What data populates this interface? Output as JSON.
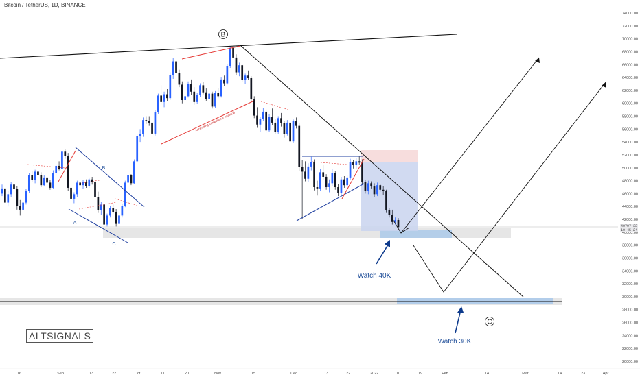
{
  "header": {
    "symbol": "Bitcoin / TetherUS, 1D, BINANCE"
  },
  "logo": {
    "text": "ALTSIGNALS"
  },
  "price_box": {
    "price": "40797.33",
    "time": "10:45:24"
  },
  "annotations": {
    "wave_B_top": "B",
    "wave_C_future": "C",
    "small_A": "A",
    "small_B": "B",
    "small_C": "C",
    "watch_40k": "Watch 40K",
    "watch_30k": "Watch 30K",
    "rotated_note": "Ascending correction = reversal"
  },
  "colors": {
    "bull": "#2962ff",
    "bear": "#131722",
    "trend_red": "#e53935",
    "trend_blue": "#2040a0",
    "arrow_blue": "#0d3a8c",
    "zone_blue": "#a8c8ea",
    "zone_grey": "#e6e6e6",
    "loss_zone": "#f6d7d7",
    "profit_zone": "#c9d3ef"
  },
  "chart_data": {
    "type": "candlestick",
    "symbol": "BTCUSDT",
    "timeframe": "1D",
    "ylim": [
      20000,
      74000
    ],
    "y_ticks": [
      "74000.00",
      "72000.00",
      "70000.00",
      "68000.00",
      "66000.00",
      "64000.00",
      "62000.00",
      "60000.00",
      "58000.00",
      "56000.00",
      "54000.00",
      "52000.00",
      "50000.00",
      "48000.00",
      "46000.00",
      "44000.00",
      "42000.00",
      "40000.00",
      "38000.00",
      "36000.00",
      "34000.00",
      "32000.00",
      "30000.00",
      "28000.00",
      "26000.00",
      "24000.00",
      "22000.00",
      "20000.00"
    ],
    "x_ticks": [
      "16",
      "Sep",
      "13",
      "22",
      "Oct",
      "11",
      "20",
      "Nov",
      "15",
      "Dec",
      "13",
      "22",
      "2022",
      "10",
      "19",
      "Feb",
      "14",
      "Mar",
      "14",
      "23",
      "Apr"
    ],
    "last_price": 40797.33,
    "support_levels": [
      40000,
      30000
    ],
    "candles": [
      [
        46000,
        47400,
        45600,
        46800
      ],
      [
        46800,
        47200,
        44200,
        44600
      ],
      [
        44600,
        46400,
        44000,
        45900
      ],
      [
        45900,
        47800,
        45500,
        47400
      ],
      [
        47400,
        48000,
        46400,
        46700
      ],
      [
        46700,
        47100,
        43500,
        44100
      ],
      [
        44100,
        45000,
        42600,
        43500
      ],
      [
        43500,
        44900,
        43100,
        44600
      ],
      [
        44600,
        46700,
        44300,
        46400
      ],
      [
        46400,
        49200,
        46100,
        48900
      ],
      [
        48900,
        49500,
        47800,
        48100
      ],
      [
        48100,
        49700,
        47600,
        49400
      ],
      [
        49400,
        50300,
        48600,
        48900
      ],
      [
        48900,
        49300,
        47000,
        47300
      ],
      [
        47300,
        48800,
        47100,
        48500
      ],
      [
        48500,
        49400,
        47500,
        47700
      ],
      [
        47700,
        48100,
        46600,
        46900
      ],
      [
        46900,
        49600,
        46700,
        49200
      ],
      [
        49200,
        50600,
        48800,
        50300
      ],
      [
        50300,
        51000,
        49600,
        49800
      ],
      [
        49800,
        52800,
        49500,
        52500
      ],
      [
        52500,
        52900,
        51400,
        51800
      ],
      [
        51800,
        52300,
        46400,
        46900
      ],
      [
        46900,
        47300,
        44800,
        45200
      ],
      [
        45200,
        46200,
        44500,
        45900
      ],
      [
        45900,
        48000,
        45500,
        47700
      ],
      [
        47700,
        48500,
        46900,
        47300
      ],
      [
        47300,
        48100,
        46700,
        47800
      ],
      [
        47800,
        48200,
        46900,
        47200
      ],
      [
        47200,
        48500,
        46900,
        48200
      ],
      [
        48200,
        48600,
        47400,
        47800
      ],
      [
        47800,
        48000,
        45100,
        45500
      ],
      [
        45500,
        46300,
        43000,
        43400
      ],
      [
        43400,
        44700,
        42700,
        44300
      ],
      [
        44300,
        44600,
        40800,
        41200
      ],
      [
        41200,
        42900,
        40900,
        42600
      ],
      [
        42600,
        44100,
        42300,
        43800
      ],
      [
        43800,
        44300,
        42900,
        43100
      ],
      [
        43100,
        43600,
        40900,
        41300
      ],
      [
        41300,
        42900,
        41000,
        42600
      ],
      [
        42600,
        44400,
        42300,
        44100
      ],
      [
        44100,
        48000,
        43900,
        47700
      ],
      [
        47700,
        49300,
        47400,
        48900
      ],
      [
        48900,
        49000,
        47300,
        47600
      ],
      [
        47600,
        51300,
        47500,
        51000
      ],
      [
        51000,
        55300,
        50800,
        54900
      ],
      [
        54900,
        56000,
        54000,
        55200
      ],
      [
        55200,
        57800,
        54800,
        57400
      ],
      [
        57400,
        58000,
        56800,
        57300
      ],
      [
        57300,
        58000,
        56500,
        57000
      ],
      [
        57000,
        57900,
        55000,
        55300
      ],
      [
        55300,
        59000,
        55000,
        58600
      ],
      [
        58600,
        61500,
        58300,
        61200
      ],
      [
        61200,
        62800,
        59800,
        60200
      ],
      [
        60200,
        61800,
        59400,
        61400
      ],
      [
        61400,
        62200,
        60300,
        60800
      ],
      [
        60800,
        64800,
        60500,
        64400
      ],
      [
        64400,
        67000,
        63800,
        66500
      ],
      [
        66500,
        67000,
        64300,
        64700
      ],
      [
        64700,
        65200,
        62500,
        62900
      ],
      [
        62900,
        63400,
        60000,
        60500
      ],
      [
        60500,
        61800,
        59500,
        61100
      ],
      [
        61100,
        63400,
        60900,
        63000
      ],
      [
        63000,
        63700,
        61300,
        61800
      ],
      [
        61800,
        62500,
        59800,
        60200
      ],
      [
        60200,
        61600,
        59900,
        61300
      ],
      [
        61300,
        63100,
        61000,
        62800
      ],
      [
        62800,
        63300,
        61400,
        61700
      ],
      [
        61700,
        62300,
        60400,
        60700
      ],
      [
        60700,
        61900,
        60300,
        61500
      ],
      [
        61500,
        61800,
        59200,
        59500
      ],
      [
        59500,
        61900,
        59300,
        61600
      ],
      [
        61600,
        62400,
        60800,
        61100
      ],
      [
        61100,
        64000,
        60900,
        63700
      ],
      [
        63700,
        64300,
        62700,
        63100
      ],
      [
        63100,
        66100,
        62900,
        65800
      ],
      [
        65800,
        68900,
        65500,
        68600
      ],
      [
        68600,
        69000,
        66600,
        67100
      ],
      [
        67100,
        67600,
        64400,
        64800
      ],
      [
        64800,
        66300,
        64200,
        65900
      ],
      [
        65900,
        66000,
        63300,
        63600
      ],
      [
        63600,
        64600,
        63000,
        64300
      ],
      [
        64300,
        65100,
        63600,
        63900
      ],
      [
        63900,
        64200,
        60300,
        60600
      ],
      [
        60600,
        61100,
        57700,
        58100
      ],
      [
        58100,
        59400,
        56200,
        56700
      ],
      [
        56700,
        57900,
        55500,
        57600
      ],
      [
        57600,
        59300,
        57200,
        58700
      ],
      [
        58700,
        59100,
        55400,
        55800
      ],
      [
        55800,
        58300,
        55500,
        57900
      ],
      [
        57900,
        59200,
        56600,
        57000
      ],
      [
        57000,
        57600,
        55300,
        55600
      ],
      [
        55600,
        58000,
        55300,
        57700
      ],
      [
        57700,
        58500,
        56400,
        56900
      ],
      [
        56900,
        57300,
        54700,
        55200
      ],
      [
        55200,
        57400,
        55000,
        57000
      ],
      [
        57000,
        57600,
        53700,
        54100
      ],
      [
        54100,
        57500,
        53900,
        57200
      ],
      [
        57200,
        57800,
        56100,
        56500
      ],
      [
        56500,
        56900,
        49500,
        50100
      ],
      [
        50100,
        51200,
        42000,
        49400
      ],
      [
        49400,
        51000,
        47900,
        48300
      ],
      [
        48300,
        50700,
        47800,
        50200
      ],
      [
        50200,
        51700,
        49600,
        50900
      ],
      [
        50900,
        51300,
        46500,
        47000
      ],
      [
        47000,
        48000,
        45700,
        46800
      ],
      [
        46800,
        49800,
        46400,
        49300
      ],
      [
        49300,
        50400,
        48100,
        48600
      ],
      [
        48600,
        49000,
        46600,
        47000
      ],
      [
        47000,
        48200,
        46200,
        47600
      ],
      [
        47600,
        49800,
        47200,
        49200
      ],
      [
        49200,
        49500,
        46600,
        47000
      ],
      [
        47000,
        47500,
        45600,
        46100
      ],
      [
        46100,
        48600,
        45800,
        48200
      ],
      [
        48200,
        48700,
        46900,
        47300
      ],
      [
        47300,
        48900,
        46800,
        48500
      ],
      [
        48500,
        51400,
        48200,
        50900
      ],
      [
        50900,
        51200,
        49900,
        50400
      ],
      [
        50400,
        51500,
        49800,
        51000
      ],
      [
        51000,
        51800,
        50500,
        50800
      ],
      [
        50800,
        51300,
        47500,
        47800
      ],
      [
        47800,
        48100,
        46000,
        46400
      ],
      [
        46400,
        48000,
        45900,
        47600
      ],
      [
        47600,
        47900,
        46800,
        47100
      ],
      [
        47100,
        47600,
        45500,
        45900
      ],
      [
        45900,
        47700,
        45600,
        47300
      ],
      [
        47300,
        47500,
        46300,
        46600
      ],
      [
        46600,
        47100,
        45800,
        46400
      ],
      [
        46400,
        46600,
        43000,
        43400
      ],
      [
        43400,
        43700,
        42300,
        42700
      ],
      [
        42700,
        43500,
        41200,
        41600
      ],
      [
        41600,
        42300,
        41200,
        41900
      ],
      [
        41900,
        42200,
        40600,
        40800
      ]
    ]
  }
}
